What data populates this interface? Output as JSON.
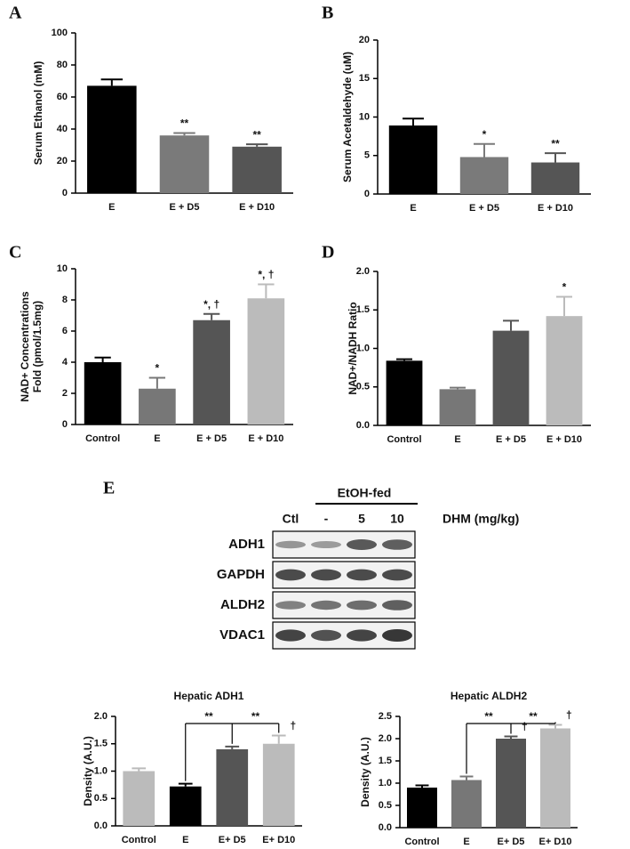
{
  "chart_data": [
    {
      "type": "bar",
      "panel": "A",
      "ylabel": [
        "Serum Ethanol (mM)"
      ],
      "categories": [
        "E",
        "E + D5",
        "E + D10"
      ],
      "values": [
        67,
        36,
        29
      ],
      "errors": [
        4,
        1.5,
        1.5
      ],
      "colors": [
        "#000000",
        "#7a7a7a",
        "#555555"
      ],
      "significance": [
        null,
        "**",
        "**"
      ],
      "ylim": [
        0,
        100
      ],
      "yticks": [
        0,
        20,
        40,
        60,
        80,
        100
      ]
    },
    {
      "type": "bar",
      "panel": "B",
      "ylabel": [
        "Serum Acetaldehyde (uM)"
      ],
      "categories": [
        "E",
        "E + D5",
        "E + D10"
      ],
      "values": [
        8.9,
        4.8,
        4.1
      ],
      "errors": [
        0.9,
        1.7,
        1.2
      ],
      "colors": [
        "#000000",
        "#7a7a7a",
        "#555555"
      ],
      "significance": [
        null,
        "*",
        "**"
      ],
      "ylim": [
        0,
        20
      ],
      "yticks": [
        0,
        5,
        10,
        15,
        20
      ]
    },
    {
      "type": "bar",
      "panel": "C",
      "ylabel": [
        "NAD+ Concentrations",
        "Fold (pmol/1.5mg)"
      ],
      "categories": [
        "Control",
        "E",
        "E + D5",
        "E + D10"
      ],
      "values": [
        4.0,
        2.3,
        6.7,
        8.1
      ],
      "errors": [
        0.3,
        0.7,
        0.4,
        0.9
      ],
      "colors": [
        "#000000",
        "#777777",
        "#555555",
        "#bbbbbb"
      ],
      "significance": [
        null,
        "*",
        "*, †",
        "*, †"
      ],
      "ylim": [
        0,
        10
      ],
      "yticks": [
        0,
        2,
        4,
        6,
        8,
        10
      ]
    },
    {
      "type": "bar",
      "panel": "D",
      "ylabel": [
        "NAD+/NADH Ratio"
      ],
      "categories": [
        "Control",
        "E",
        "E + D5",
        "E + D10"
      ],
      "values": [
        0.84,
        0.47,
        1.23,
        1.42
      ],
      "errors": [
        0.02,
        0.02,
        0.13,
        0.25
      ],
      "colors": [
        "#000000",
        "#777777",
        "#555555",
        "#bbbbbb"
      ],
      "significance": [
        null,
        null,
        null,
        "*"
      ],
      "ylim": [
        0,
        2
      ],
      "yticks": [
        {
          "value": 0,
          "label": "0.0"
        },
        {
          "value": 0.5,
          "label": "0.5"
        },
        {
          "value": 1,
          "label": "1.0"
        },
        {
          "value": 1.5,
          "label": "1.5"
        },
        {
          "value": 2,
          "label": "2.0"
        }
      ]
    },
    {
      "type": "bar",
      "title": "Hepatic ADH1",
      "ylabel": [
        "Density (A.U.)"
      ],
      "categories": [
        "Control",
        "E",
        "E+ D5",
        "E+ D10"
      ],
      "values": [
        1.0,
        0.72,
        1.4,
        1.5
      ],
      "errors": [
        0.05,
        0.05,
        0.05,
        0.15
      ],
      "colors": [
        "#bbbbbb",
        "#000000",
        "#555555",
        "#bbbbbb"
      ],
      "significance": [
        null,
        null,
        null,
        "†"
      ],
      "bracket_labels": [
        "**",
        "**"
      ],
      "ylim": [
        0,
        2
      ],
      "yticks": [
        {
          "value": 0,
          "label": "0.0"
        },
        {
          "value": 0.5,
          "label": "0.5"
        },
        {
          "value": 1,
          "label": "1.0"
        },
        {
          "value": 1.5,
          "label": "1.5"
        },
        {
          "value": 2,
          "label": "2.0"
        }
      ]
    },
    {
      "type": "bar",
      "title": "Hepatic ALDH2",
      "ylabel": [
        "Density (A.U.)"
      ],
      "categories": [
        "Control",
        "E",
        "E+ D5",
        "E+ D10"
      ],
      "values": [
        0.9,
        1.07,
        2.0,
        2.23
      ],
      "errors": [
        0.05,
        0.08,
        0.05,
        0.08
      ],
      "colors": [
        "#000000",
        "#777777",
        "#555555",
        "#bbbbbb"
      ],
      "significance": [
        null,
        null,
        "†",
        "†"
      ],
      "bracket_labels": [
        "**",
        "**"
      ],
      "ylim": [
        0,
        2.5
      ],
      "yticks": [
        {
          "value": 0,
          "label": "0.0"
        },
        {
          "value": 0.5,
          "label": "0.5"
        },
        {
          "value": 1,
          "label": "1.0"
        },
        {
          "value": 1.5,
          "label": "1.5"
        },
        {
          "value": 2,
          "label": "2.0"
        },
        {
          "value": 2.5,
          "label": "2.5"
        }
      ]
    }
  ],
  "blot": {
    "panel": "E",
    "group_label": "EtOH-fed",
    "lanes": [
      "Ctl",
      "-",
      "5",
      "10"
    ],
    "dose_label": "DHM (mg/kg)",
    "rows": [
      "ADH1",
      "GAPDH",
      "ALDH2",
      "VDAC1"
    ]
  }
}
